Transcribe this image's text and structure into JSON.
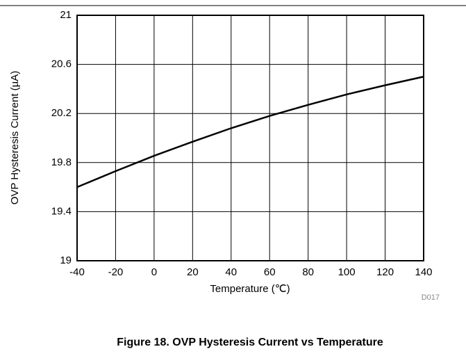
{
  "chart_data": {
    "type": "line",
    "x_label": "Temperature (℃)",
    "y_label": "OVP Hysteresis Current (µA)",
    "annotation": "D017",
    "caption": "Figure 18. OVP Hysteresis Current vs Temperature",
    "x": [
      -40,
      -20,
      0,
      20,
      40,
      60,
      80,
      100,
      120,
      140
    ],
    "series": [
      {
        "name": "OVP Hysteresis Current",
        "color": "#000000",
        "values": [
          19.6,
          19.73,
          19.855,
          19.97,
          20.08,
          20.18,
          20.27,
          20.355,
          20.43,
          20.5
        ]
      }
    ],
    "xlim": [
      -40,
      140
    ],
    "xticks": [
      -40,
      -20,
      0,
      20,
      40,
      60,
      80,
      100,
      120,
      140
    ],
    "ylim": [
      19,
      21
    ],
    "yticks": [
      19,
      19.4,
      19.8,
      20.2,
      20.6,
      21
    ],
    "grid": true
  }
}
